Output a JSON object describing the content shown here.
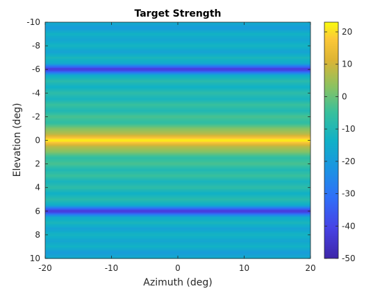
{
  "chart_data": {
    "type": "heatmap",
    "title": "Target Strength",
    "xlabel": "Azimuth (deg)",
    "ylabel": "Elevation (deg)",
    "xlim": [
      -20,
      20
    ],
    "ylim": [
      -10,
      10
    ],
    "y_reversed": true,
    "x_ticks": [
      -20,
      -10,
      0,
      10,
      20
    ],
    "y_ticks": [
      -10,
      -8,
      -6,
      -4,
      -2,
      0,
      2,
      4,
      6,
      8,
      10
    ],
    "x_tick_labels": [
      "-20",
      "-10",
      "0",
      "10",
      "20"
    ],
    "y_tick_labels": [
      "-10",
      "-8",
      "-6",
      "-4",
      "-2",
      "0",
      "2",
      "4",
      "6",
      "8",
      "10"
    ],
    "colorbar": {
      "colormap": "parula",
      "clim": [
        -50,
        23
      ],
      "ticks": [
        -50,
        -40,
        -30,
        -20,
        -10,
        0,
        10,
        20
      ],
      "tick_labels": [
        "-50",
        "-40",
        "-30",
        "-20",
        "-10",
        "0",
        "10",
        "20"
      ]
    },
    "elevation": [
      -10,
      -9.5,
      -9,
      -8.5,
      -8,
      -7.5,
      -7,
      -6.5,
      -6,
      -5.5,
      -5,
      -4.5,
      -4,
      -3.5,
      -3,
      -2.5,
      -2,
      -1.5,
      -1,
      -0.5,
      0,
      0.5,
      1,
      1.5,
      2,
      2.5,
      3,
      3.5,
      4,
      4.5,
      5,
      5.5,
      6,
      6.5,
      7,
      7.5,
      8,
      8.5,
      9,
      9.5,
      10
    ],
    "values_by_elevation": [
      -15,
      -20,
      -13,
      -17,
      -12,
      -18,
      -11,
      -16,
      -45,
      -15,
      -8,
      -14,
      -7,
      -12,
      -5,
      -10,
      -3,
      -7,
      2,
      8,
      23,
      8,
      2,
      -7,
      -3,
      -10,
      -5,
      -12,
      -7,
      -14,
      -8,
      -15,
      -45,
      -16,
      -11,
      -18,
      -12,
      -17,
      -13,
      -20,
      -15
    ]
  }
}
